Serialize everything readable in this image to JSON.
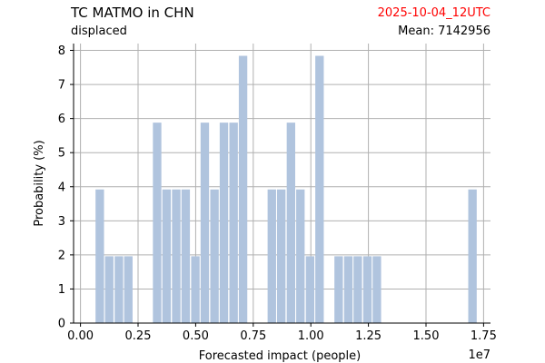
{
  "header": {
    "title": "TC MATMO in CHN",
    "subtitle": "displaced",
    "timestamp": "2025-10-04_12UTC",
    "mean_label": "Mean: 7142956",
    "timestamp_color": "#ff0000"
  },
  "chart_data": {
    "type": "bar",
    "xlabel": "Forecasted impact (people)",
    "ylabel": "Probability (%)",
    "x_offset_label": "1e7",
    "xlim": [
      -0.03,
      1.78
    ],
    "ylim": [
      0,
      8.2
    ],
    "x_ticks": [
      0.0,
      0.25,
      0.5,
      0.75,
      1.0,
      1.25,
      1.5,
      1.75
    ],
    "x_tick_labels": [
      "0.00",
      "0.25",
      "0.50",
      "0.75",
      "1.00",
      "1.25",
      "1.50",
      "1.75"
    ],
    "y_ticks": [
      0,
      1,
      2,
      3,
      4,
      5,
      6,
      7,
      8
    ],
    "y_tick_labels": [
      "0",
      "1",
      "2",
      "3",
      "4",
      "5",
      "6",
      "7",
      "8"
    ],
    "grid": true,
    "bar_color": "#b0c4de",
    "bin_width": 0.0415,
    "bins": [
      {
        "x": 0.063,
        "value": 3.92
      },
      {
        "x": 0.104,
        "value": 1.96
      },
      {
        "x": 0.146,
        "value": 1.96
      },
      {
        "x": 0.187,
        "value": 1.96
      },
      {
        "x": 0.312,
        "value": 5.88
      },
      {
        "x": 0.353,
        "value": 3.92
      },
      {
        "x": 0.395,
        "value": 3.92
      },
      {
        "x": 0.436,
        "value": 3.92
      },
      {
        "x": 0.478,
        "value": 1.96
      },
      {
        "x": 0.519,
        "value": 5.88
      },
      {
        "x": 0.561,
        "value": 3.92
      },
      {
        "x": 0.602,
        "value": 5.88
      },
      {
        "x": 0.644,
        "value": 5.88
      },
      {
        "x": 0.685,
        "value": 7.84
      },
      {
        "x": 0.81,
        "value": 3.92
      },
      {
        "x": 0.851,
        "value": 3.92
      },
      {
        "x": 0.893,
        "value": 5.88
      },
      {
        "x": 0.934,
        "value": 3.92
      },
      {
        "x": 0.976,
        "value": 1.96
      },
      {
        "x": 1.017,
        "value": 7.84
      },
      {
        "x": 1.1,
        "value": 1.96
      },
      {
        "x": 1.142,
        "value": 1.96
      },
      {
        "x": 1.183,
        "value": 1.96
      },
      {
        "x": 1.225,
        "value": 1.96
      },
      {
        "x": 1.266,
        "value": 1.96
      },
      {
        "x": 1.681,
        "value": 3.92
      }
    ]
  }
}
